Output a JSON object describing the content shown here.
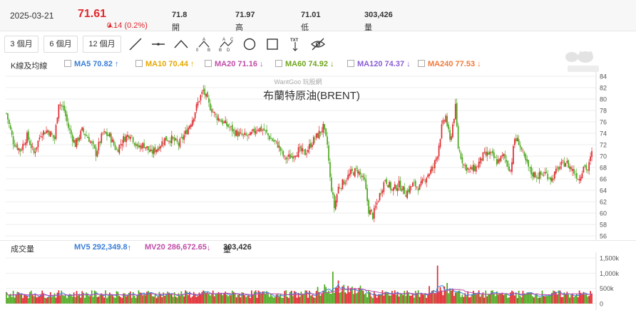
{
  "header": {
    "date": "2025-03-21",
    "price": "71.61",
    "change": "0.14 (0.2%)",
    "open_label": "開",
    "open": "71.8",
    "high_label": "高",
    "high": "71.97",
    "low_label": "低",
    "low": "71.01",
    "volume_label": "量",
    "volume": "303,426"
  },
  "toolbar": {
    "periods": [
      "3 個月",
      "6 個月",
      "12 個月"
    ],
    "tools": [
      "line-tool-icon",
      "horizontal-line-tool-icon",
      "polyline-tool-icon",
      "abc-pattern-tool-icon",
      "abcd-pattern-tool-icon",
      "circle-tool-icon",
      "rectangle-tool-icon",
      "text-tool-icon",
      "hide-drawings-icon"
    ],
    "tool_glyphs": {
      "abc": "A",
      "abc_b": "B",
      "abc_c": "C",
      "zero": "0",
      "abcd_d": "D",
      "txt": "TXT"
    }
  },
  "ma": {
    "label": "K線及均線",
    "items": [
      {
        "name": "MA5",
        "value": "70.82",
        "dir": "↑",
        "color": "#3b7ed8"
      },
      {
        "name": "MA10",
        "value": "70.44",
        "dir": "↑",
        "color": "#e6a800"
      },
      {
        "name": "MA20",
        "value": "71.16",
        "dir": "↓",
        "color": "#c04ca8"
      },
      {
        "name": "MA60",
        "value": "74.92",
        "dir": "↓",
        "color": "#6fa51c"
      },
      {
        "name": "MA120",
        "value": "74.37",
        "dir": "↓",
        "color": "#8a5cd6"
      },
      {
        "name": "MA240",
        "value": "77.53",
        "dir": "↓",
        "color": "#f07a3a"
      }
    ]
  },
  "volume_panel": {
    "label": "成交量",
    "mv5": {
      "name": "MV5",
      "value": "292,349.8",
      "dir": "↑",
      "color": "#3b7ed8"
    },
    "mv20": {
      "name": "MV20",
      "value": "286,672.65",
      "dir": "↓",
      "color": "#c04ca8"
    },
    "vol": {
      "name": "量",
      "value": "303,426"
    }
  },
  "colors": {
    "up": "#e0282e",
    "down": "#4ca81e",
    "grid": "#eeeeee",
    "axis_text": "#555555"
  },
  "chart_data": [
    {
      "type": "candlestick",
      "title": "布蘭特原油(BRENT)",
      "watermark": "WantGoo 玩股網",
      "ylim": [
        55,
        84
      ],
      "yticks": [
        56,
        58,
        60,
        62,
        64,
        66,
        68,
        70,
        72,
        74,
        76,
        78,
        80,
        82,
        84
      ],
      "grid": true,
      "series": [
        {
          "name": "Brent",
          "anchors": [
            [
              0,
              77.5
            ],
            [
              5,
              72.5
            ],
            [
              10,
              71.0
            ],
            [
              15,
              73.5
            ],
            [
              20,
              70.5
            ],
            [
              25,
              74.0
            ],
            [
              30,
              74.5
            ],
            [
              35,
              73.0
            ],
            [
              38,
              79.5
            ],
            [
              42,
              78.0
            ],
            [
              45,
              75.0
            ],
            [
              50,
              72.0
            ],
            [
              55,
              74.5
            ],
            [
              60,
              73.0
            ],
            [
              65,
              70.5
            ],
            [
              70,
              74.0
            ],
            [
              75,
              73.5
            ],
            [
              80,
              71.0
            ],
            [
              85,
              73.0
            ],
            [
              90,
              74.0
            ],
            [
              95,
              71.5
            ],
            [
              100,
              72.0
            ],
            [
              105,
              70.5
            ],
            [
              110,
              71.5
            ],
            [
              115,
              73.0
            ],
            [
              120,
              73.0
            ],
            [
              125,
              72.0
            ],
            [
              130,
              74.0
            ],
            [
              135,
              76.5
            ],
            [
              140,
              80.0
            ],
            [
              143,
              81.5
            ],
            [
              147,
              79.0
            ],
            [
              152,
              77.0
            ],
            [
              157,
              76.0
            ],
            [
              162,
              75.0
            ],
            [
              167,
              74.0
            ],
            [
              172,
              73.5
            ],
            [
              177,
              73.5
            ],
            [
              182,
              75.0
            ],
            [
              187,
              74.5
            ],
            [
              192,
              73.0
            ],
            [
              197,
              72.0
            ],
            [
              202,
              69.5
            ],
            [
              207,
              70.0
            ],
            [
              212,
              71.0
            ],
            [
              217,
              70.5
            ],
            [
              222,
              72.5
            ],
            [
              227,
              74.0
            ],
            [
              230,
              75.0
            ],
            [
              233,
              72.0
            ],
            [
              235,
              66.0
            ],
            [
              238,
              61.0
            ],
            [
              241,
              64.5
            ],
            [
              245,
              65.5
            ],
            [
              250,
              67.0
            ],
            [
              255,
              67.5
            ],
            [
              260,
              65.5
            ],
            [
              263,
              60.5
            ],
            [
              266,
              59.5
            ],
            [
              270,
              62.5
            ],
            [
              275,
              66.0
            ],
            [
              280,
              64.0
            ],
            [
              285,
              65.0
            ],
            [
              290,
              63.5
            ],
            [
              295,
              65.0
            ],
            [
              300,
              64.5
            ],
            [
              305,
              66.5
            ],
            [
              310,
              68.0
            ],
            [
              313,
              70.5
            ],
            [
              316,
              75.0
            ],
            [
              319,
              77.0
            ],
            [
              322,
              72.5
            ],
            [
              326,
              78.5
            ],
            [
              328,
              71.5
            ],
            [
              332,
              68.5
            ],
            [
              336,
              67.5
            ],
            [
              341,
              68.0
            ],
            [
              346,
              70.0
            ],
            [
              351,
              70.5
            ],
            [
              356,
              69.0
            ],
            [
              361,
              70.0
            ],
            [
              366,
              67.5
            ],
            [
              369,
              73.0
            ],
            [
              372,
              72.5
            ],
            [
              376,
              69.5
            ],
            [
              381,
              67.0
            ],
            [
              386,
              66.5
            ],
            [
              391,
              67.0
            ],
            [
              396,
              66.0
            ],
            [
              401,
              68.0
            ],
            [
              406,
              69.0
            ],
            [
              411,
              67.5
            ],
            [
              416,
              66.0
            ],
            [
              419,
              68.5
            ],
            [
              422,
              67.5
            ],
            [
              425,
              70.5
            ]
          ]
        }
      ]
    },
    {
      "type": "bar",
      "title": "成交量",
      "ylim": [
        0,
        1500000
      ],
      "yticks": [
        "1,500k",
        "1,000k",
        "500k",
        "0"
      ],
      "series": [
        {
          "name": "MV5",
          "color": "#3b7ed8"
        },
        {
          "name": "MV20",
          "color": "#c04ca8"
        }
      ],
      "spikes": [
        [
          237,
          1050000
        ],
        [
          241,
          760000
        ],
        [
          245,
          620000
        ],
        [
          313,
          1250000
        ],
        [
          318,
          560000
        ],
        [
          320,
          680000
        ]
      ]
    }
  ]
}
